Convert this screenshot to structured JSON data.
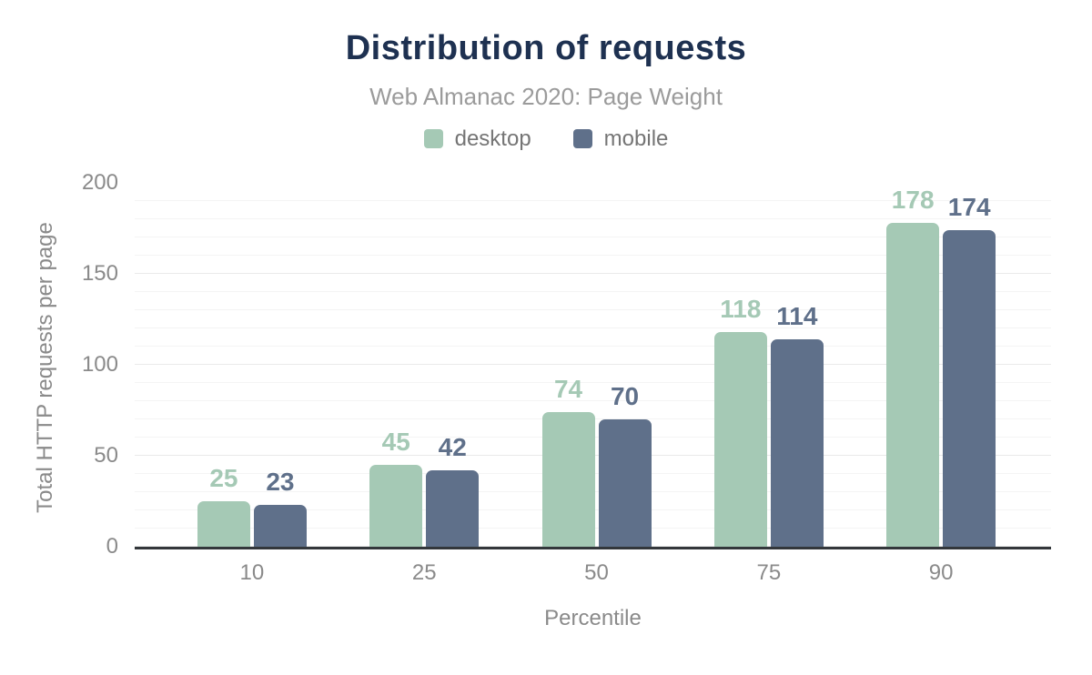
{
  "title": "Distribution of requests",
  "subtitle": "Web Almanac 2020: Page Weight",
  "legend": {
    "items": [
      {
        "label": "desktop",
        "color": "#a5c9b5"
      },
      {
        "label": "mobile",
        "color": "#5f708a"
      }
    ]
  },
  "y_axis": {
    "title": "Total HTTP requests per page",
    "ticks": [
      0,
      50,
      100,
      150,
      200
    ]
  },
  "x_axis": {
    "title": "Percentile"
  },
  "chart_data": {
    "type": "bar",
    "title": "Distribution of requests",
    "subtitle": "Web Almanac 2020: Page Weight",
    "categories": [
      "10",
      "25",
      "50",
      "75",
      "90"
    ],
    "series": [
      {
        "name": "desktop",
        "color": "#a5c9b5",
        "values": [
          25,
          45,
          74,
          118,
          178
        ]
      },
      {
        "name": "mobile",
        "color": "#5f708a",
        "values": [
          23,
          42,
          70,
          114,
          174
        ]
      }
    ],
    "xlabel": "Percentile",
    "ylabel": "Total HTTP requests per page",
    "ylim": [
      0,
      200
    ],
    "y_tick_step": 50,
    "grid_minor_step": 10,
    "grid": "on",
    "legend_position": "top",
    "bar_value_labels": true
  },
  "colors": {
    "title_text": "#1e3151",
    "subtitle_text": "#9b9b9b",
    "axis_text": "#8a8a8a",
    "legend_text": "#757575",
    "grid_minor": "#f4f4f4",
    "grid_major": "#eaeaea",
    "baseline": "#33373b",
    "background": "#ffffff",
    "desktop_bar": "#a5c9b5",
    "mobile_bar": "#5f708a"
  }
}
